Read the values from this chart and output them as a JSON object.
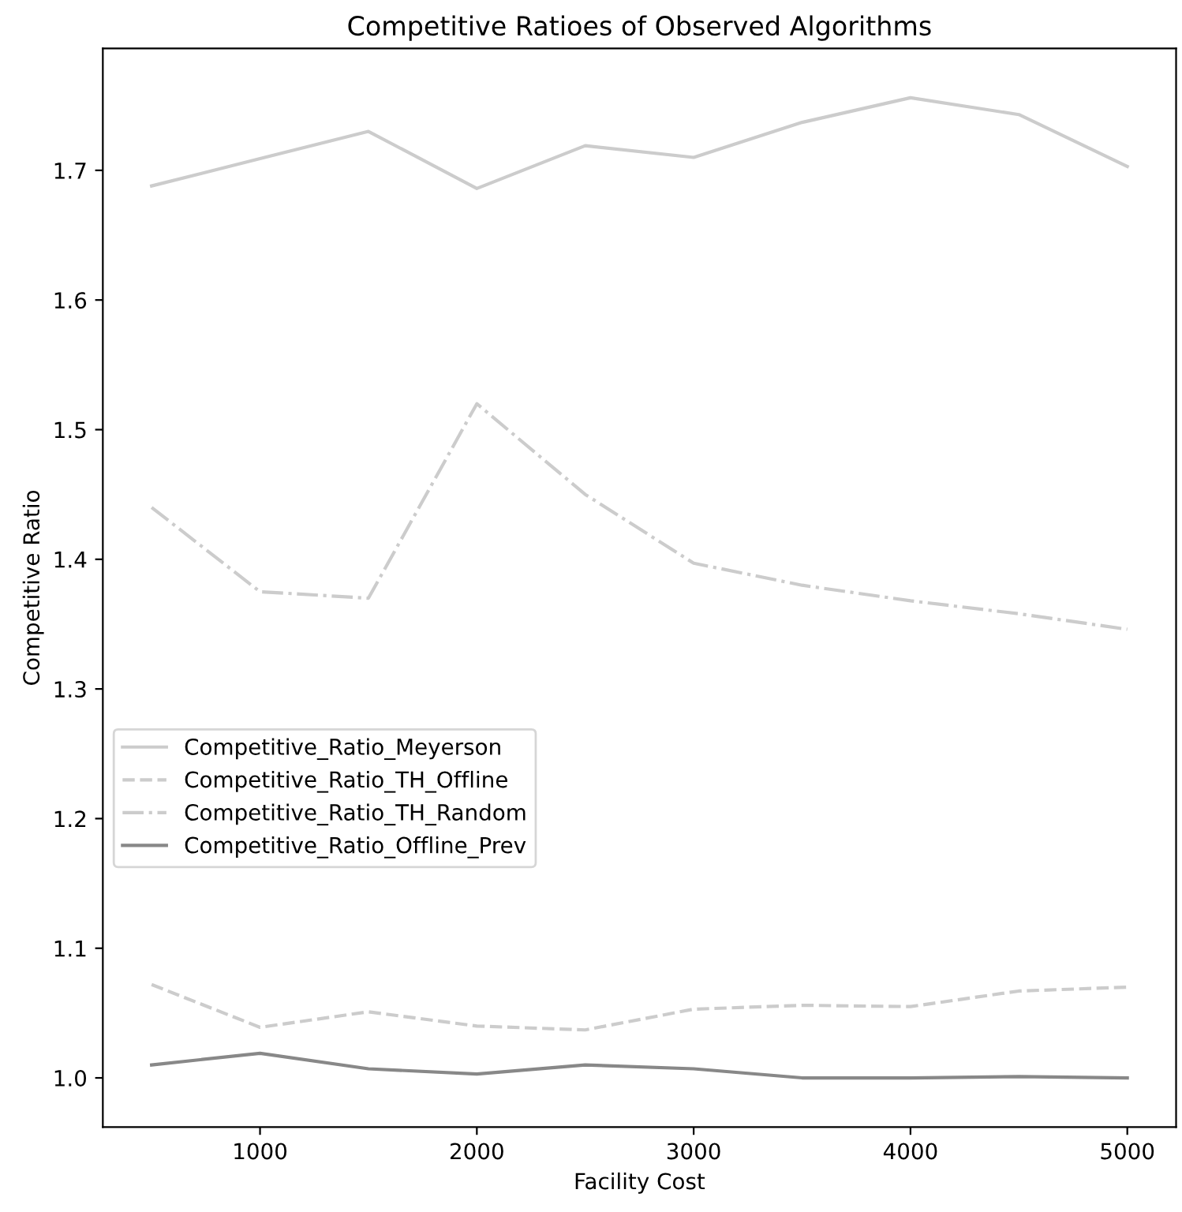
{
  "chart_data": {
    "type": "line",
    "title": "Competitive Ratioes of Observed Algorithms",
    "xlabel": "Facility Cost",
    "ylabel": "Competitive Ratio",
    "x": [
      500,
      1000,
      1500,
      2000,
      2500,
      3000,
      3500,
      4000,
      4500,
      5000
    ],
    "xlim": [
      275,
      5225
    ],
    "xticks": [
      1000,
      2000,
      3000,
      4000,
      5000
    ],
    "ylim": [
      0.962,
      1.794
    ],
    "yticks": [
      {
        "value": 1.0,
        "label": "1.0"
      },
      1.1,
      1.2,
      1.3,
      1.4,
      1.5,
      1.6,
      1.7
    ],
    "grid": false,
    "legend": "center left",
    "series": [
      {
        "name": "Competitive_Ratio_Meyerson",
        "color": "#cccccc",
        "line_style": "solid",
        "values": [
          1.688,
          1.709,
          1.73,
          1.686,
          1.719,
          1.71,
          1.737,
          1.756,
          1.743,
          1.703
        ]
      },
      {
        "name": "Competitive_Ratio_TH_Offline",
        "color": "#cccccc",
        "line_style": "dashed",
        "values": [
          1.072,
          1.039,
          1.051,
          1.04,
          1.037,
          1.053,
          1.056,
          1.055,
          1.067,
          1.07
        ]
      },
      {
        "name": "Competitive_Ratio_TH_Random",
        "color": "#cccccc",
        "line_style": "dashdot",
        "values": [
          1.44,
          1.375,
          1.37,
          1.52,
          1.45,
          1.397,
          1.38,
          1.368,
          1.358,
          1.346
        ]
      },
      {
        "name": "Competitive_Ratio_Offline_Prev",
        "color": "#888888",
        "line_style": "solid",
        "values": [
          1.01,
          1.019,
          1.007,
          1.003,
          1.01,
          1.007,
          1.0,
          1.0,
          1.001,
          1.0
        ]
      }
    ]
  }
}
